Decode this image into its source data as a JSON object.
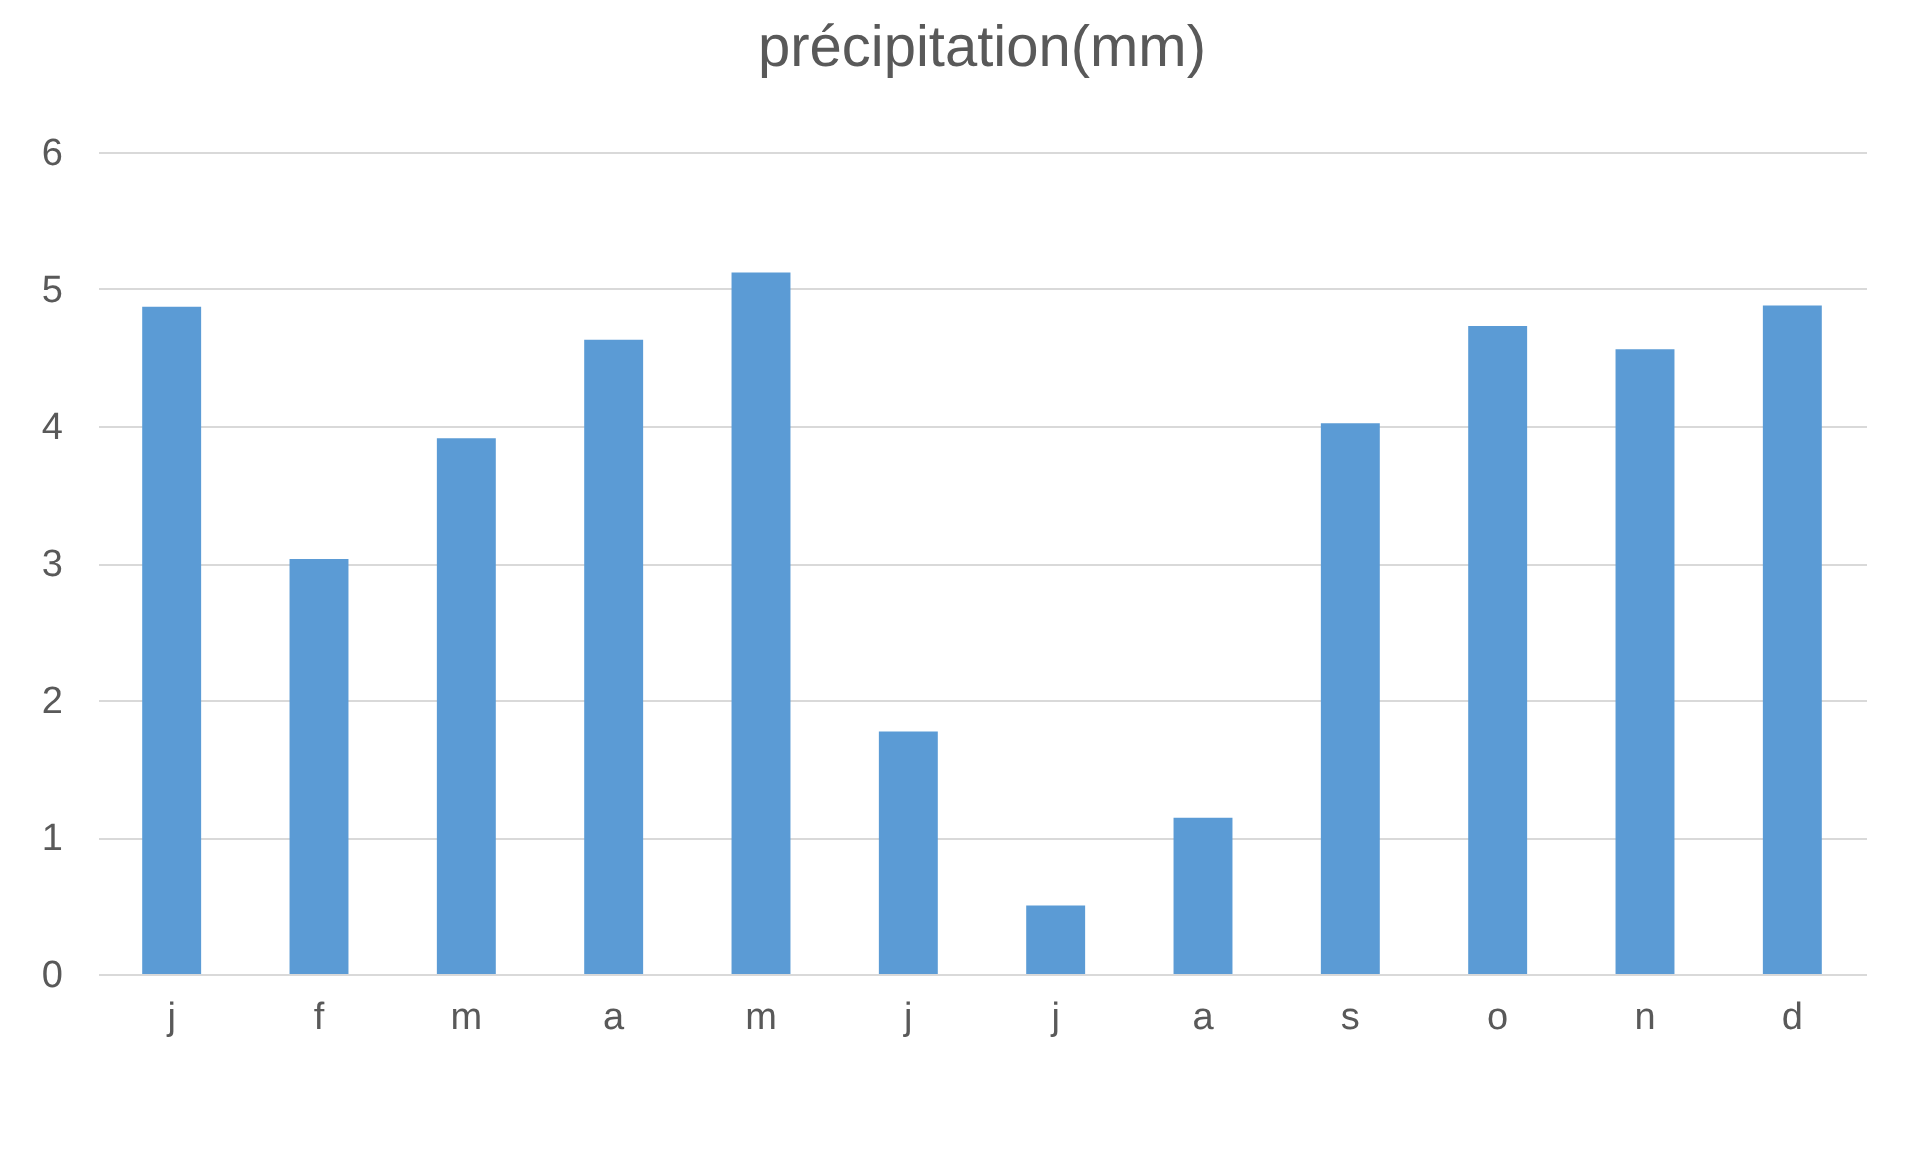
{
  "chart_data": {
    "type": "bar",
    "title": "précipitation(mm)",
    "categories": [
      "j",
      "f",
      "m",
      "a",
      "m",
      "j",
      "j",
      "a",
      "s",
      "o",
      "n",
      "d"
    ],
    "values": [
      4.87,
      3.03,
      3.91,
      4.63,
      5.12,
      1.77,
      0.5,
      1.14,
      4.02,
      4.73,
      4.56,
      4.88
    ],
    "color": "#5b9bd5",
    "ylim": [
      0,
      6
    ],
    "yticks": [
      0,
      1,
      2,
      3,
      4,
      5,
      6
    ],
    "grid": "y"
  }
}
